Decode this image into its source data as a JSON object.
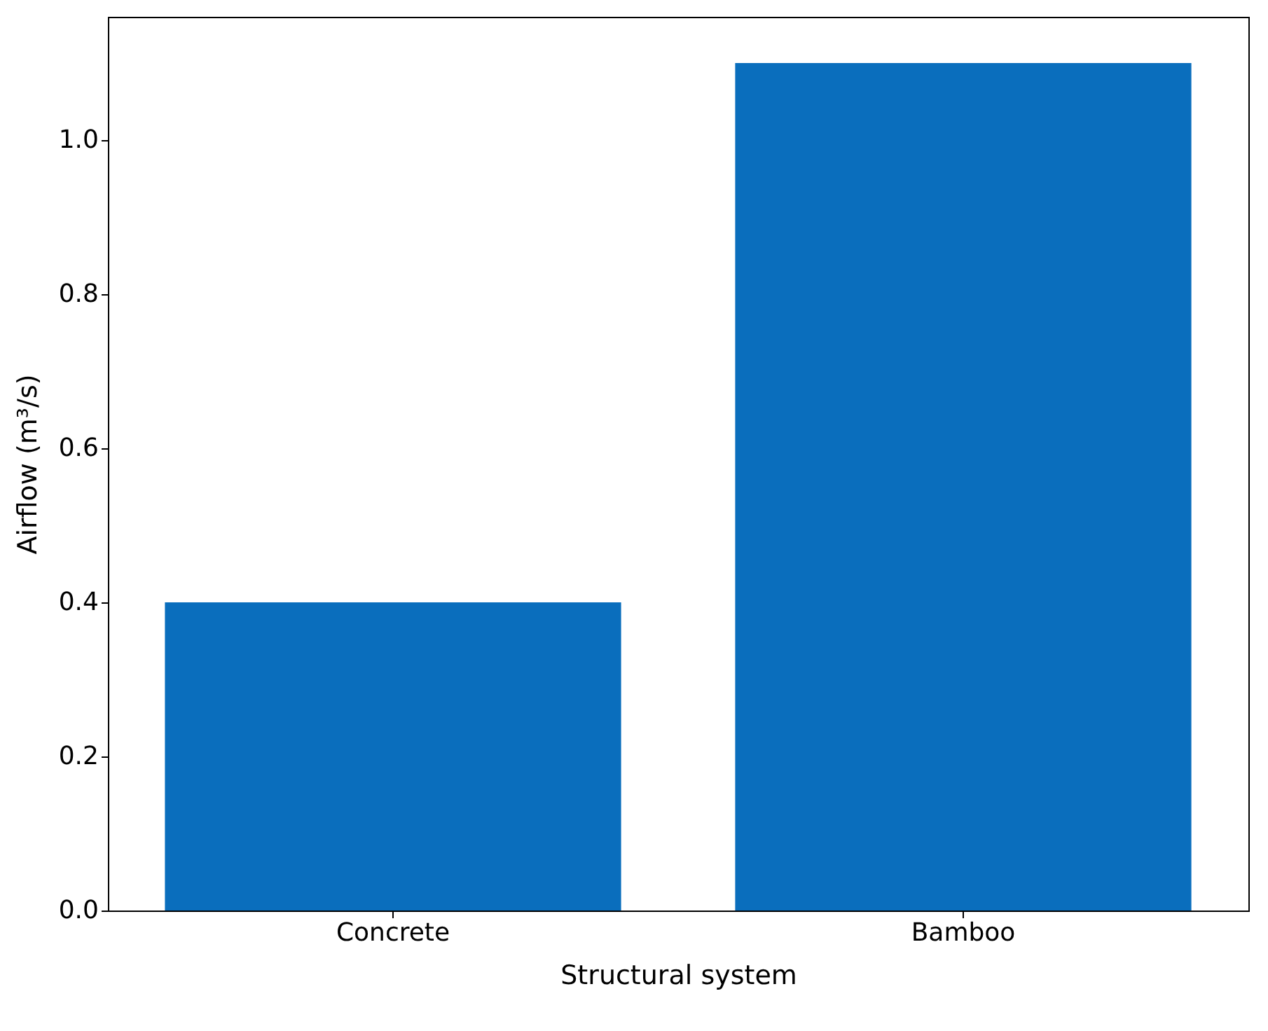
{
  "chart_data": {
    "type": "bar",
    "xlabel": "Structural system",
    "ylabel": "Airflow (m³/s)",
    "categories": [
      "Concrete",
      "Bamboo"
    ],
    "values": [
      0.4,
      1.1
    ],
    "color": "#0a6ebd",
    "ylim": [
      0,
      1.16
    ],
    "yticks": [
      {
        "value": 0,
        "label": "0.0"
      },
      {
        "value": 0.2,
        "label": "0.2"
      },
      {
        "value": 0.4,
        "label": "0.4"
      },
      {
        "value": 0.6,
        "label": "0.6"
      },
      {
        "value": 0.8,
        "label": "0.8"
      },
      {
        "value": 1.0,
        "label": "1.0"
      }
    ],
    "grid": false
  }
}
